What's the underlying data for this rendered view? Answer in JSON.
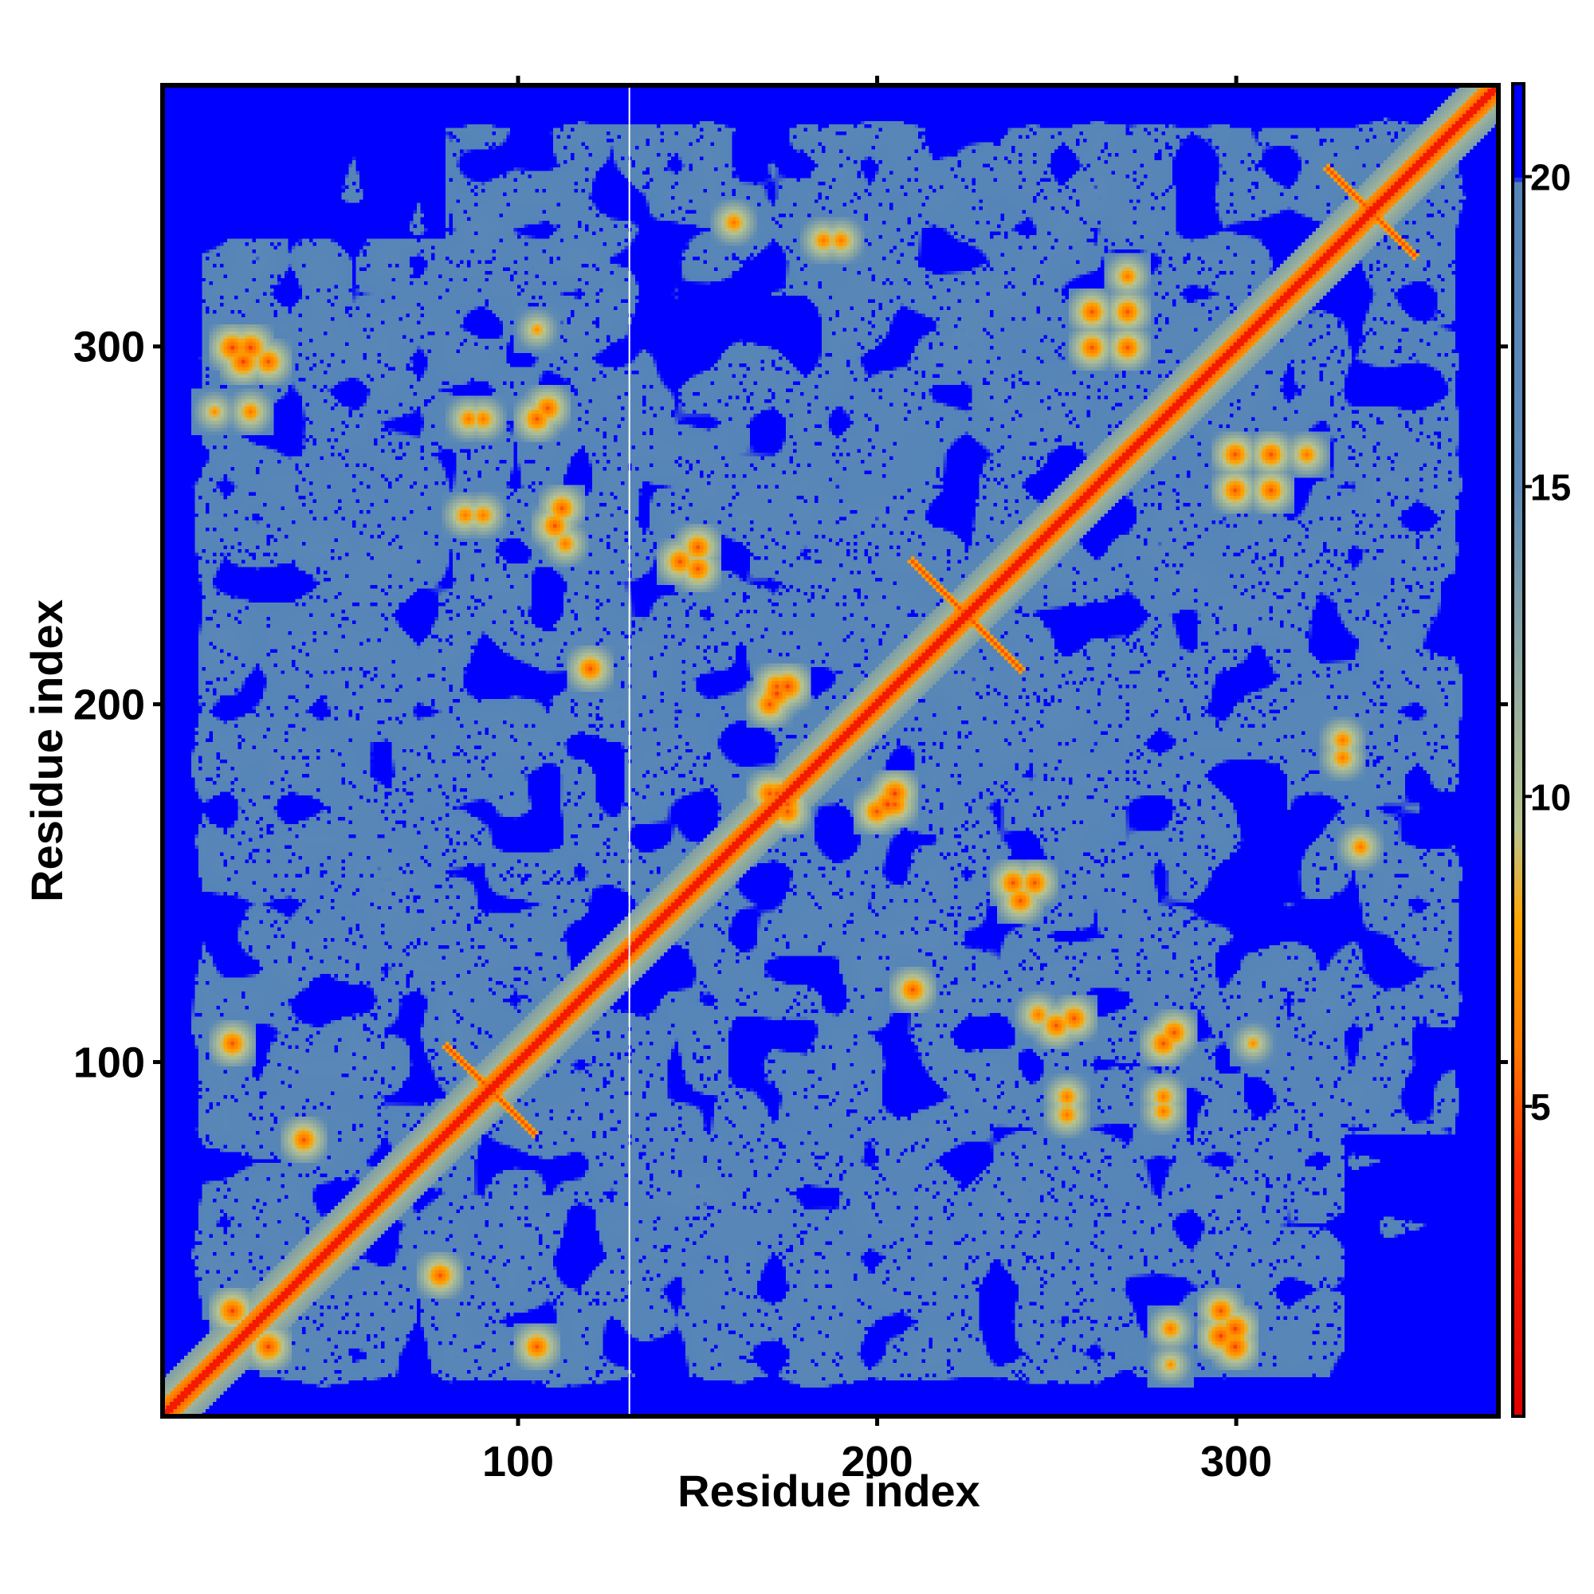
{
  "chart_data": {
    "type": "heatmap",
    "title": "",
    "xlabel": "Residue index",
    "ylabel": "Residue index",
    "n_residues": 373,
    "xlim": [
      1,
      373
    ],
    "ylim": [
      1,
      373
    ],
    "x_ticks": [
      100,
      200,
      300
    ],
    "y_ticks": [
      100,
      200,
      300
    ],
    "colorbar": {
      "ticks": [
        5,
        10,
        15,
        20
      ],
      "range": [
        0,
        21.5
      ],
      "stops": [
        {
          "value": 0,
          "color": "#e00000"
        },
        {
          "value": 4,
          "color": "#ff2a00"
        },
        {
          "value": 6,
          "color": "#ff7a00"
        },
        {
          "value": 8,
          "color": "#ffa500"
        },
        {
          "value": 9.5,
          "color": "#b9c58f"
        },
        {
          "value": 12,
          "color": "#8fa9a0"
        },
        {
          "value": 15,
          "color": "#5d8ab5"
        },
        {
          "value": 19.9,
          "color": "#5584b8"
        },
        {
          "value": 20,
          "color": "#0000ff"
        }
      ]
    },
    "values_description_cells": "symmetric residue–residue distance matrix (Å)",
    "contacts": [
      {
        "i": 20,
        "j": 300,
        "d": 4.5
      },
      {
        "i": 23,
        "j": 296,
        "d": 4.5
      },
      {
        "i": 15,
        "j": 282,
        "d": 7
      },
      {
        "i": 25,
        "j": 282,
        "d": 6
      },
      {
        "i": 86,
        "j": 280,
        "d": 6
      },
      {
        "i": 90,
        "j": 253,
        "d": 6
      },
      {
        "i": 105,
        "j": 280,
        "d": 5
      },
      {
        "i": 108,
        "j": 283,
        "d": 5
      },
      {
        "i": 105,
        "j": 305,
        "d": 7
      },
      {
        "i": 110,
        "j": 250,
        "d": 5
      },
      {
        "i": 113,
        "j": 245,
        "d": 6
      },
      {
        "i": 145,
        "j": 240,
        "d": 5
      },
      {
        "i": 150,
        "j": 244,
        "d": 5
      },
      {
        "i": 160,
        "j": 335,
        "d": 6
      },
      {
        "i": 185,
        "j": 330,
        "d": 6
      },
      {
        "i": 120,
        "j": 210,
        "d": 5
      },
      {
        "i": 172,
        "j": 203,
        "d": 4.5
      },
      {
        "i": 175,
        "j": 205,
        "d": 4.5
      },
      {
        "i": 170,
        "j": 175,
        "d": 5
      },
      {
        "i": 175,
        "j": 172,
        "d": 5
      },
      {
        "i": 200,
        "j": 170,
        "d": 5
      },
      {
        "i": 205,
        "j": 172,
        "d": 5
      },
      {
        "i": 238,
        "j": 150,
        "d": 5
      },
      {
        "i": 240,
        "j": 145,
        "d": 5
      },
      {
        "i": 255,
        "j": 112,
        "d": 5
      },
      {
        "i": 280,
        "j": 105,
        "d": 5
      },
      {
        "i": 283,
        "j": 108,
        "d": 5
      },
      {
        "i": 253,
        "j": 85,
        "d": 6
      },
      {
        "i": 280,
        "j": 90,
        "d": 6
      },
      {
        "i": 296,
        "j": 30,
        "d": 5
      },
      {
        "i": 300,
        "j": 25,
        "d": 4.5
      },
      {
        "i": 20,
        "j": 105,
        "d": 5
      },
      {
        "i": 30,
        "j": 20,
        "d": 4.5
      },
      {
        "i": 105,
        "j": 20,
        "d": 5
      },
      {
        "i": 78,
        "j": 40,
        "d": 5
      },
      {
        "i": 40,
        "j": 78,
        "d": 5
      },
      {
        "i": 335,
        "j": 160,
        "d": 6
      },
      {
        "i": 330,
        "j": 190,
        "d": 6
      },
      {
        "i": 300,
        "j": 260,
        "d": 5
      },
      {
        "i": 310,
        "j": 270,
        "d": 5
      },
      {
        "i": 270,
        "j": 300,
        "d": 5
      },
      {
        "i": 260,
        "j": 310,
        "d": 5
      },
      {
        "i": 270,
        "j": 320,
        "d": 6
      },
      {
        "i": 320,
        "j": 270,
        "d": 6
      }
    ],
    "crosses": [
      {
        "center": 92,
        "half": 12
      },
      {
        "center": 225,
        "half": 15
      },
      {
        "center": 338,
        "half": 12
      }
    ]
  }
}
